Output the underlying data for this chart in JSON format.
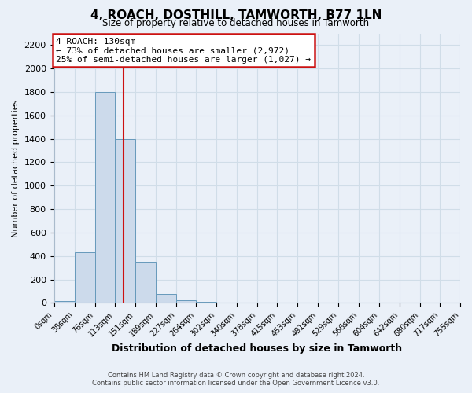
{
  "title": "4, ROACH, DOSTHILL, TAMWORTH, B77 1LN",
  "subtitle": "Size of property relative to detached houses in Tamworth",
  "xlabel": "Distribution of detached houses by size in Tamworth",
  "ylabel": "Number of detached properties",
  "bin_edges": [
    0,
    38,
    76,
    113,
    151,
    189,
    227,
    264,
    302,
    340,
    378,
    415,
    453,
    491,
    529,
    566,
    604,
    642,
    680,
    717,
    755
  ],
  "bin_labels": [
    "0sqm",
    "38sqm",
    "76sqm",
    "113sqm",
    "151sqm",
    "189sqm",
    "227sqm",
    "264sqm",
    "302sqm",
    "340sqm",
    "378sqm",
    "415sqm",
    "453sqm",
    "491sqm",
    "529sqm",
    "566sqm",
    "604sqm",
    "642sqm",
    "680sqm",
    "717sqm",
    "755sqm"
  ],
  "counts": [
    15,
    430,
    1800,
    1400,
    350,
    75,
    25,
    10,
    5,
    0,
    0,
    0,
    0,
    0,
    0,
    0,
    0,
    0,
    0,
    0
  ],
  "bar_color": "#ccdaeb",
  "bar_edge_color": "#6699bb",
  "property_value": 130,
  "vline_color": "#cc1111",
  "annotation_title": "4 ROACH: 130sqm",
  "annotation_line1": "← 73% of detached houses are smaller (2,972)",
  "annotation_line2": "25% of semi-detached houses are larger (1,027) →",
  "annotation_box_edge": "#cc1111",
  "ylim": [
    0,
    2300
  ],
  "yticks": [
    0,
    200,
    400,
    600,
    800,
    1000,
    1200,
    1400,
    1600,
    1800,
    2000,
    2200
  ],
  "footer1": "Contains HM Land Registry data © Crown copyright and database right 2024.",
  "footer2": "Contains public sector information licensed under the Open Government Licence v3.0.",
  "grid_color": "#d0dde8",
  "bg_color": "#eaf0f8"
}
